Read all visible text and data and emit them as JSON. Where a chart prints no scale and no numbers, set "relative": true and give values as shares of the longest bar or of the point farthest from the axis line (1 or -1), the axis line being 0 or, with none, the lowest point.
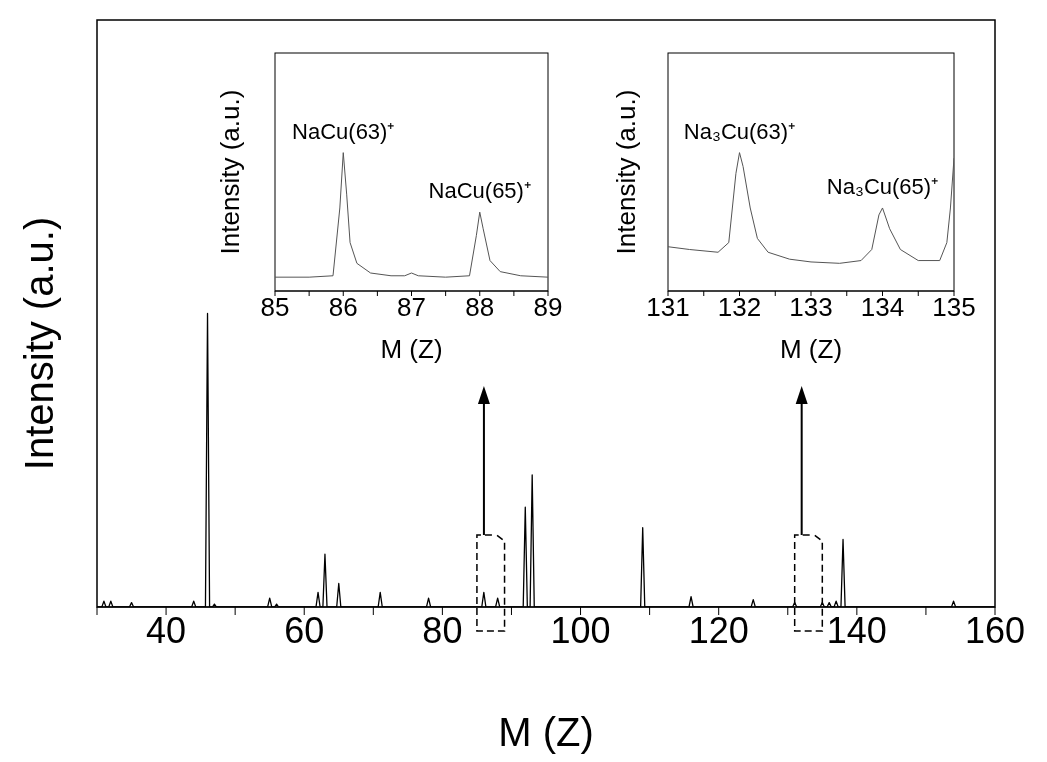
{
  "chart_data": [
    {
      "type": "line",
      "relative": true,
      "xlabel": "M (Z)",
      "ylabel": "Intensity (a.u.)",
      "marker": "none",
      "xlim": [
        30,
        160
      ],
      "xticks": [
        {
          "value": 30,
          "label": null
        },
        40,
        {
          "value": 50,
          "label": null
        },
        60,
        {
          "value": 70,
          "label": null
        },
        80,
        {
          "value": 90,
          "label": null
        },
        100,
        {
          "value": 110,
          "label": null
        },
        120,
        {
          "value": 130,
          "label": null
        },
        140,
        {
          "value": 150,
          "label": null
        },
        160
      ],
      "series": [
        {
          "color": "#000000",
          "x": [
            30,
            30.7,
            31,
            31.3,
            31.7,
            32,
            32.3,
            34.7,
            35,
            35.3,
            43.7,
            44,
            44.3,
            45.7,
            46,
            46.3,
            46.7,
            47,
            47.3,
            54.7,
            55,
            55.3,
            55.7,
            56,
            56.3,
            61.7,
            62,
            62.3,
            62.7,
            63,
            63.3,
            64.7,
            65,
            65.3,
            70.7,
            71,
            71.3,
            77.7,
            78,
            78.3,
            85.7,
            86,
            86.3,
            87.7,
            88,
            88.3,
            91.7,
            92,
            92.3,
            92.7,
            93,
            93.3,
            108.7,
            109,
            109.3,
            115.7,
            116,
            116.3,
            124.7,
            125,
            125.3,
            130.7,
            131,
            131.3,
            134.7,
            135,
            135.3,
            135.7,
            136,
            136.3,
            136.7,
            137,
            137.3,
            137.7,
            138,
            138.3,
            153.7,
            154,
            154.3,
            160
          ],
          "values": [
            0,
            0,
            0.02,
            0,
            0,
            0.02,
            0,
            0,
            0.015,
            0,
            0,
            0.02,
            0,
            0,
            1,
            0,
            0,
            0.01,
            0,
            0,
            0.03,
            0,
            0,
            0.01,
            0,
            0,
            0.05,
            0,
            0,
            0.18,
            0,
            0,
            0.08,
            0,
            0,
            0.05,
            0,
            0,
            0.03,
            0,
            0,
            0.05,
            0,
            0,
            0.03,
            0,
            0,
            0.34,
            0,
            0,
            0.45,
            0,
            0,
            0.27,
            0,
            0,
            0.035,
            0,
            0,
            0.025,
            0,
            0,
            0.015,
            0,
            0,
            0.015,
            0,
            0,
            0.015,
            0,
            0,
            0.02,
            0,
            0,
            0.23,
            0,
            0,
            0.02,
            0,
            0
          ]
        }
      ]
    },
    {
      "type": "line",
      "relative": true,
      "xlabel": "M (Z)",
      "ylabel": "Intensity (a.u.)",
      "marker": "none",
      "xlim": [
        85,
        89
      ],
      "xticks": [
        85,
        {
          "value": 85.5,
          "label": null
        },
        86,
        {
          "value": 86.5,
          "label": null
        },
        87,
        {
          "value": 87.5,
          "label": null
        },
        88,
        {
          "value": 88.5,
          "label": null
        },
        89
      ],
      "annotations": [
        {
          "text": "NaCu(63)⁺",
          "x": 86,
          "y": 1
        },
        {
          "text": "NaCu(65)⁺",
          "x": 88,
          "y": 0.57
        }
      ],
      "series": [
        {
          "color": "#555555",
          "x": [
            85,
            85.5,
            85.85,
            85.95,
            86,
            86.05,
            86.1,
            86.2,
            86.4,
            86.7,
            86.9,
            87,
            87.1,
            87.5,
            87.85,
            87.95,
            88,
            88.05,
            88.15,
            88.3,
            88.6,
            89
          ],
          "values": [
            0.1,
            0.1,
            0.11,
            0.6,
            1,
            0.7,
            0.35,
            0.2,
            0.13,
            0.11,
            0.11,
            0.13,
            0.11,
            0.1,
            0.11,
            0.4,
            0.57,
            0.45,
            0.22,
            0.14,
            0.11,
            0.1
          ]
        }
      ]
    },
    {
      "type": "line",
      "relative": true,
      "xlabel": "M (Z)",
      "ylabel": "Intensity (a.u.)",
      "marker": "none",
      "xlim": [
        131,
        135
      ],
      "xticks": [
        131,
        {
          "value": 131.5,
          "label": null
        },
        132,
        {
          "value": 132.5,
          "label": null
        },
        133,
        {
          "value": 133.5,
          "label": null
        },
        134,
        {
          "value": 134.5,
          "label": null
        },
        135
      ],
      "annotations": [
        {
          "text": "Na₃Cu(63)⁺",
          "x": 132,
          "y": 1
        },
        {
          "text": "Na₃Cu(65)⁺",
          "x": 134,
          "y": 0.6
        }
      ],
      "series": [
        {
          "color": "#555555",
          "x": [
            131,
            131.3,
            131.7,
            131.85,
            131.95,
            132,
            132.05,
            132.15,
            132.25,
            132.4,
            132.7,
            133,
            133.4,
            133.7,
            133.85,
            133.95,
            134,
            134.1,
            134.25,
            134.5,
            134.8,
            134.9,
            134.95,
            135
          ],
          "values": [
            0.32,
            0.3,
            0.28,
            0.35,
            0.85,
            1,
            0.9,
            0.6,
            0.38,
            0.28,
            0.23,
            0.21,
            0.2,
            0.22,
            0.3,
            0.55,
            0.6,
            0.45,
            0.3,
            0.22,
            0.22,
            0.35,
            0.6,
            0.96
          ]
        }
      ]
    }
  ]
}
